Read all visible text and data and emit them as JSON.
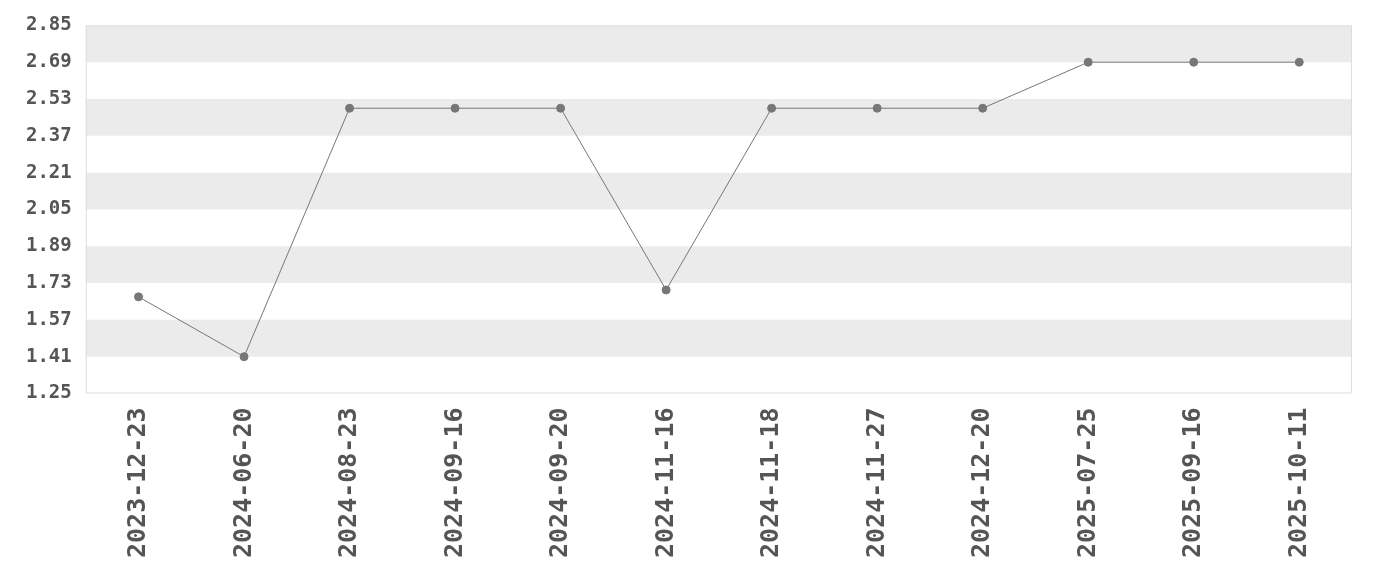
{
  "chart_data": {
    "type": "line",
    "categories": [
      "2023-12-23",
      "2024-06-20",
      "2024-08-23",
      "2024-09-16",
      "2024-09-20",
      "2024-11-16",
      "2024-11-18",
      "2024-11-27",
      "2024-12-20",
      "2025-07-25",
      "2025-09-16",
      "2025-10-11"
    ],
    "values": [
      1.67,
      1.41,
      2.49,
      2.49,
      2.49,
      1.7,
      2.49,
      2.49,
      2.49,
      2.69,
      2.69,
      2.69
    ],
    "color": "#777777",
    "ylim": [
      1.25,
      2.85
    ],
    "yticks": [
      1.25,
      1.41,
      1.57,
      1.73,
      1.89,
      2.05,
      2.21,
      2.37,
      2.53,
      2.69,
      2.85
    ],
    "bands": [
      {
        "axis": "y",
        "from": 1.41,
        "to": 1.57,
        "color": "#ebebeb"
      },
      {
        "axis": "y",
        "from": 1.73,
        "to": 1.89,
        "color": "#ebebeb"
      },
      {
        "axis": "y",
        "from": 2.05,
        "to": 2.21,
        "color": "#ebebeb"
      },
      {
        "axis": "y",
        "from": 2.37,
        "to": 2.53,
        "color": "#ebebeb"
      },
      {
        "axis": "y",
        "from": 2.69,
        "to": 2.85,
        "color": "#ebebeb"
      }
    ],
    "marker": "circle",
    "line_style": "solid"
  }
}
